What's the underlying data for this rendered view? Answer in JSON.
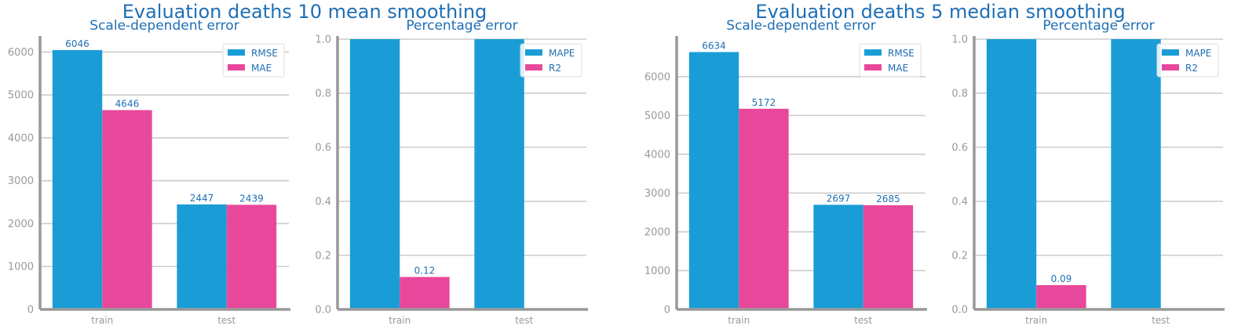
{
  "figures": [
    {
      "title": "Evaluation deaths 10 mean smoothing"
    },
    {
      "title": "Evaluation deaths 5 median smoothing"
    }
  ],
  "colors": {
    "series_a": "#1a9dd6",
    "series_b": "#e8489b",
    "axis": "#999999",
    "grid": "#cccccc",
    "text": "#1f6fb4",
    "tick": "#999999"
  },
  "chart_data": [
    {
      "type": "bar",
      "title": "Scale-dependent error",
      "categories": [
        "train",
        "test"
      ],
      "series": [
        {
          "name": "RMSE",
          "values": [
            6046,
            2447
          ],
          "labels": [
            "6046",
            "2447"
          ]
        },
        {
          "name": "MAE",
          "values": [
            4646,
            2439
          ],
          "labels": [
            "4646",
            "2439"
          ]
        }
      ],
      "ylim": [
        0,
        6300
      ],
      "yticks": [
        0,
        1000,
        2000,
        3000,
        4000,
        5000,
        6000
      ],
      "ytick_labels": [
        "0",
        "1000",
        "2000",
        "3000",
        "4000",
        "5000",
        "6000"
      ],
      "grid": true,
      "legend": "top-right"
    },
    {
      "type": "bar",
      "title": "Percentage error",
      "categories": [
        "train",
        "test"
      ],
      "series": [
        {
          "name": "MAPE",
          "values": [
            1.0,
            1.0
          ],
          "labels": [
            "",
            ""
          ]
        },
        {
          "name": "R2",
          "values": [
            0.12,
            0.0
          ],
          "labels": [
            "0.12",
            ""
          ]
        }
      ],
      "ylim": [
        0,
        1.0
      ],
      "yticks": [
        0,
        0.2,
        0.4,
        0.6,
        0.8,
        1.0
      ],
      "ytick_labels": [
        "0.0",
        "0.2",
        "0.4",
        "0.6",
        "0.8",
        "1.0"
      ],
      "grid": true,
      "legend": "top-right"
    },
    {
      "type": "bar",
      "title": "Scale-dependent error",
      "categories": [
        "train",
        "test"
      ],
      "series": [
        {
          "name": "RMSE",
          "values": [
            6634,
            2697
          ],
          "labels": [
            "6634",
            "2697"
          ]
        },
        {
          "name": "MAE",
          "values": [
            5172,
            2685
          ],
          "labels": [
            "5172",
            "2685"
          ]
        }
      ],
      "ylim": [
        0,
        6966
      ],
      "yticks": [
        0,
        1000,
        2000,
        3000,
        4000,
        5000,
        6000
      ],
      "ytick_labels": [
        "0",
        "1000",
        "2000",
        "3000",
        "4000",
        "5000",
        "6000"
      ],
      "grid": true,
      "legend": "top-right"
    },
    {
      "type": "bar",
      "title": "Percentage error",
      "categories": [
        "train",
        "test"
      ],
      "series": [
        {
          "name": "MAPE",
          "values": [
            1.0,
            1.0
          ],
          "labels": [
            "",
            ""
          ]
        },
        {
          "name": "R2",
          "values": [
            0.09,
            0.0
          ],
          "labels": [
            "0.09",
            ""
          ]
        }
      ],
      "ylim": [
        0,
        1.0
      ],
      "yticks": [
        0,
        0.2,
        0.4,
        0.6,
        0.8,
        1.0
      ],
      "ytick_labels": [
        "0.0",
        "0.2",
        "0.4",
        "0.6",
        "0.8",
        "1.0"
      ],
      "grid": true,
      "legend": "top-right"
    }
  ]
}
